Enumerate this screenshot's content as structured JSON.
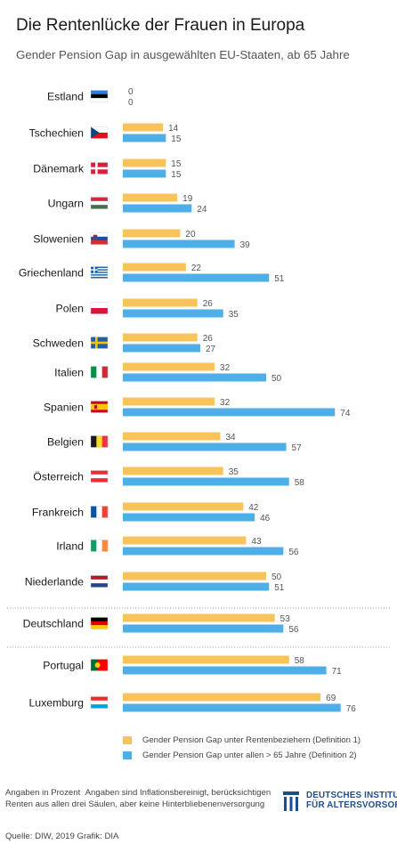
{
  "title": "Die Rentenlücke der Frauen in Europa",
  "subtitle": "Gender Pension Gap in ausgewählten EU-Staaten, ab 65 Jahre",
  "chart_data": {
    "type": "bar",
    "orientation": "horizontal",
    "categories": [
      "Estland",
      "Tschechien",
      "Dänemark",
      "Ungarn",
      "Slowenien",
      "Griechenland",
      "Polen",
      "Schweden",
      "Italien",
      "Spanien",
      "Belgien",
      "Österreich",
      "Frankreich",
      "Irland",
      "Niederlande",
      "Deutschland",
      "Portugal",
      "Luxemburg"
    ],
    "series": [
      {
        "name": "Gender Pension Gap unter Rentenbeziehern (Definition 1)",
        "color": "#f8c35b",
        "values": [
          0,
          14,
          15,
          19,
          20,
          22,
          26,
          26,
          32,
          32,
          34,
          35,
          42,
          43,
          50,
          53,
          58,
          69
        ]
      },
      {
        "name": "Gender Pension Gap unter allen > 65 Jahre (Definition 2)",
        "color": "#4daee8",
        "values": [
          0,
          15,
          15,
          24,
          39,
          51,
          35,
          27,
          50,
          74,
          57,
          58,
          46,
          56,
          51,
          56,
          71,
          76
        ]
      }
    ],
    "value_labels": true,
    "unit": "Prozent",
    "xlim": [
      0,
      80
    ],
    "grid": false,
    "legend_position": "bottom"
  },
  "flags": [
    "estonia-flag",
    "czechia-flag",
    "denmark-flag",
    "hungary-flag",
    "slovenia-flag",
    "greece-flag",
    "poland-flag",
    "sweden-flag",
    "italy-flag",
    "spain-flag",
    "belgium-flag",
    "austria-flag",
    "france-flag",
    "ireland-flag",
    "netherlands-flag",
    "germany-flag",
    "portugal-flag",
    "luxembourg-flag"
  ],
  "footer": {
    "note_label": "Angaben in Prozent",
    "note": "Angaben sind Inflationsbereinigt, berücksichtigen Renten aus allen drei Säulen, aber keine Hinterbliebenenversorgung",
    "source": "Quelle: DIW, 2019  Grafik: DIA"
  },
  "logo": {
    "line1": "DEUTSCHES INSTITUT",
    "line2": "FÜR ALTERSVORSORGE",
    "color": "#1f4e8c"
  }
}
